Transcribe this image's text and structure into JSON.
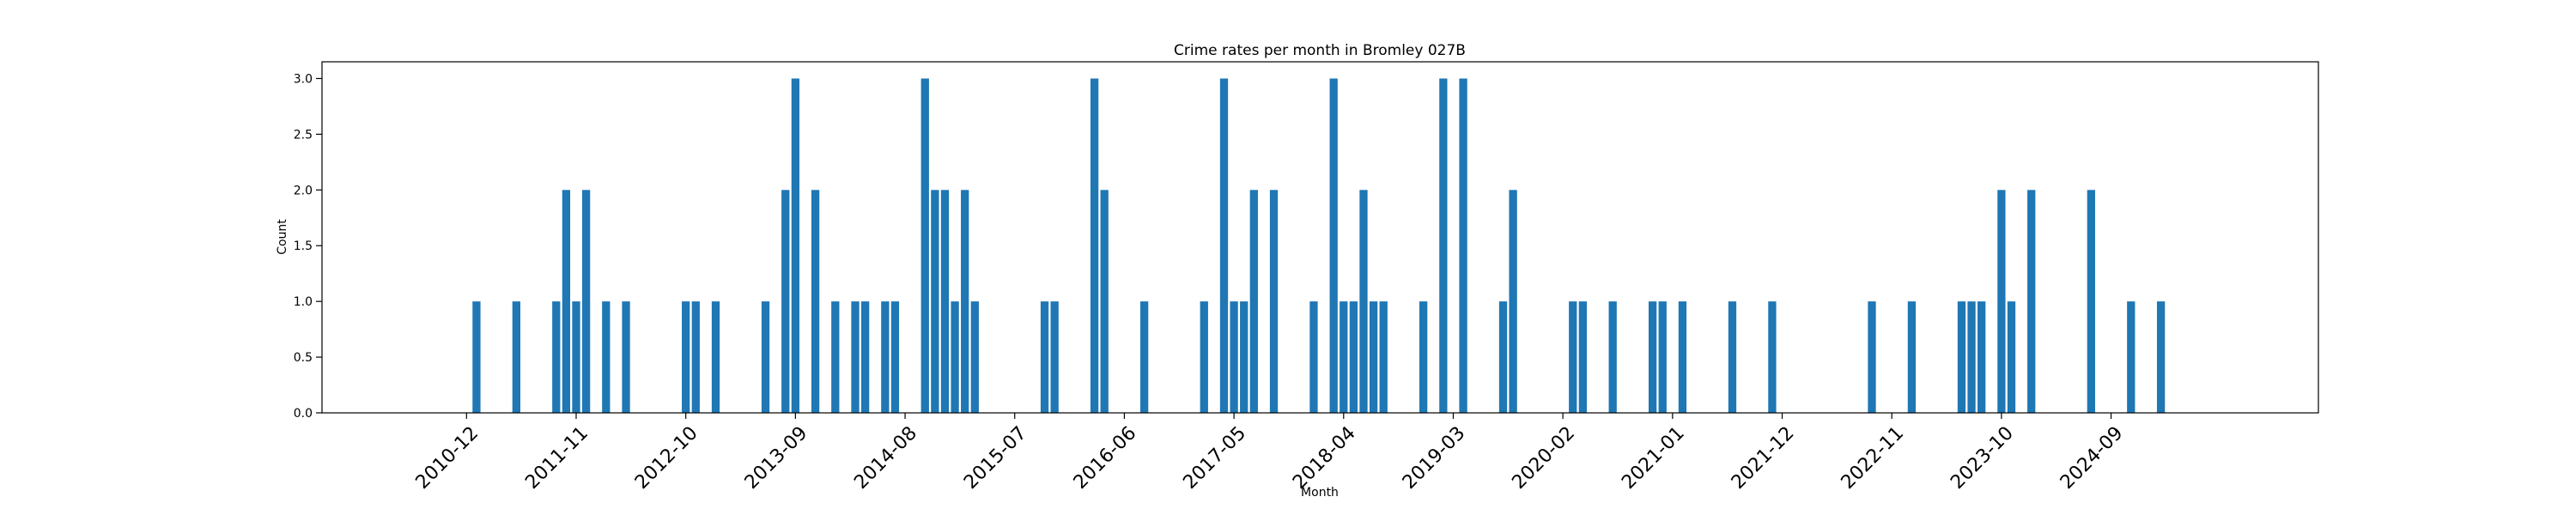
{
  "chart_data": {
    "type": "bar",
    "title": "Crime rates per month in Bromley 027B",
    "xlabel": "Month",
    "ylabel": "Count",
    "ylim": [
      0,
      3.15
    ],
    "yticks": [
      "0.0",
      "0.5",
      "1.0",
      "1.5",
      "2.0",
      "2.5",
      "3.0"
    ],
    "xtick_labels": [
      "2010-12",
      "2011-11",
      "2012-10",
      "2013-09",
      "2014-08",
      "2015-07",
      "2016-06",
      "2017-05",
      "2018-04",
      "2019-03",
      "2020-02",
      "2021-01",
      "2021-12",
      "2022-11",
      "2023-10",
      "2024-09"
    ],
    "grid": false,
    "color": "#1f77b4",
    "categories": [
      "2011-01",
      "2011-05",
      "2011-09",
      "2011-10",
      "2011-11",
      "2011-12",
      "2012-02",
      "2012-04",
      "2012-10",
      "2012-11",
      "2013-01",
      "2013-06",
      "2013-08",
      "2013-09",
      "2013-11",
      "2014-01",
      "2014-03",
      "2014-04",
      "2014-06",
      "2014-07",
      "2014-10",
      "2014-11",
      "2014-12",
      "2015-01",
      "2015-02",
      "2015-03",
      "2015-10",
      "2015-11",
      "2016-03",
      "2016-04",
      "2016-08",
      "2017-02",
      "2017-04",
      "2017-05",
      "2017-06",
      "2017-07",
      "2017-09",
      "2018-01",
      "2018-03",
      "2018-04",
      "2018-05",
      "2018-06",
      "2018-07",
      "2018-08",
      "2018-12",
      "2019-02",
      "2019-04",
      "2019-08",
      "2019-09",
      "2020-03",
      "2020-04",
      "2020-07",
      "2020-11",
      "2020-12",
      "2021-02",
      "2021-07",
      "2021-11",
      "2022-09",
      "2023-01",
      "2023-06",
      "2023-07",
      "2023-08",
      "2023-10",
      "2023-11",
      "2024-01",
      "2024-07",
      "2024-11",
      "2025-02"
    ],
    "values": [
      1,
      1,
      1,
      2,
      1,
      2,
      1,
      1,
      1,
      1,
      1,
      1,
      2,
      3,
      2,
      1,
      1,
      1,
      1,
      1,
      3,
      2,
      2,
      1,
      2,
      1,
      1,
      1,
      3,
      2,
      1,
      1,
      3,
      1,
      1,
      2,
      2,
      1,
      3,
      1,
      1,
      2,
      1,
      1,
      1,
      3,
      3,
      1,
      2,
      1,
      1,
      1,
      1,
      1,
      1,
      1,
      1,
      1,
      1,
      1,
      1,
      1,
      2,
      1,
      2,
      2,
      1,
      1
    ]
  }
}
